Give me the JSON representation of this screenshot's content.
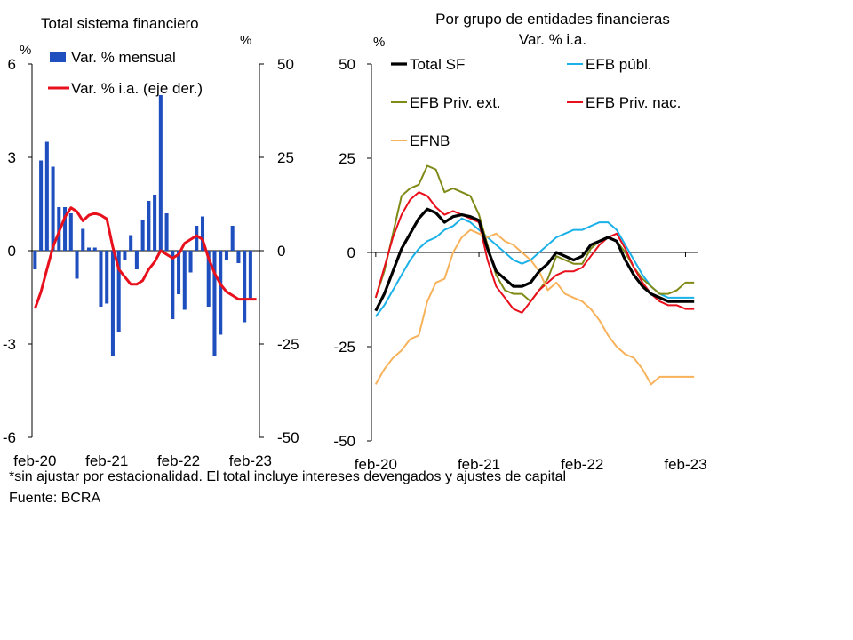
{
  "chart_data": [
    {
      "type": "bar+line",
      "title": "Total sistema financiero",
      "y_left_unit": "%",
      "y_right_unit": "%",
      "ylim_left": [
        -6,
        6
      ],
      "ylim_right": [
        -50,
        50
      ],
      "yticks_left": [
        "6",
        "3",
        "0",
        "-3",
        "-6"
      ],
      "yticks_right": [
        "50",
        "25",
        "0",
        "-25",
        "-50"
      ],
      "xticks": [
        "feb-20",
        "feb-21",
        "feb-22",
        "feb-23"
      ],
      "legend": [
        "Var. % mensual",
        "Var. % i.a. (eje der.)"
      ],
      "colors": {
        "bars": "#1f4fbf",
        "line": "#e8101c"
      },
      "x": [
        "feb-20",
        "mar-20",
        "abr-20",
        "may-20",
        "jun-20",
        "jul-20",
        "ago-20",
        "sep-20",
        "oct-20",
        "nov-20",
        "dic-20",
        "ene-21",
        "feb-21",
        "mar-21",
        "abr-21",
        "may-21",
        "jun-21",
        "jul-21",
        "ago-21",
        "sep-21",
        "oct-21",
        "nov-21",
        "dic-21",
        "ene-22",
        "feb-22",
        "mar-22",
        "abr-22",
        "may-22",
        "jun-22",
        "jul-22",
        "ago-22",
        "sep-22",
        "oct-22",
        "nov-22",
        "dic-22",
        "ene-23",
        "feb-23",
        "mar-23"
      ],
      "series": [
        {
          "name": "Var. % mensual",
          "kind": "bar",
          "values": [
            -0.6,
            2.9,
            3.5,
            2.7,
            1.4,
            1.4,
            1.2,
            -0.9,
            0.7,
            0.1,
            0.1,
            -1.8,
            -1.7,
            -3.4,
            -2.6,
            -0.3,
            0.5,
            -0.6,
            1.0,
            1.6,
            1.8,
            5.0,
            1.2,
            -2.2,
            -1.4,
            -1.9,
            -0.7,
            0.8,
            1.1,
            -1.8,
            -3.4,
            -2.7,
            -0.3,
            0.8,
            -0.4,
            -2.3,
            -1.6,
            0
          ]
        },
        {
          "name": "Var. % i.a. (eje der.)",
          "kind": "line",
          "axis": "right",
          "values": [
            -15.5,
            -11,
            -5,
            1,
            5,
            9,
            11.5,
            10.5,
            8,
            9.5,
            10,
            9.5,
            8.5,
            1,
            -5,
            -7,
            -9,
            -9,
            -8,
            -5,
            -3,
            0,
            -1,
            -2,
            -1,
            2,
            3,
            4,
            3,
            -2,
            -6,
            -9,
            -11,
            -12,
            -13,
            -13,
            -13,
            -13
          ]
        }
      ]
    },
    {
      "type": "line",
      "title": "Por grupo de entidades financieras",
      "subtitle": "Var. % i.a.",
      "y_unit": "%",
      "ylim": [
        -50,
        50
      ],
      "yticks": [
        "50",
        "25",
        "0",
        "-25",
        "-50"
      ],
      "xticks": [
        "feb-20",
        "feb-21",
        "feb-22",
        "feb-23"
      ],
      "x": [
        "feb-20",
        "mar-20",
        "abr-20",
        "may-20",
        "jun-20",
        "jul-20",
        "ago-20",
        "sep-20",
        "oct-20",
        "nov-20",
        "dic-20",
        "ene-21",
        "feb-21",
        "mar-21",
        "abr-21",
        "may-21",
        "jun-21",
        "jul-21",
        "ago-21",
        "sep-21",
        "oct-21",
        "nov-21",
        "dic-21",
        "ene-22",
        "feb-22",
        "mar-22",
        "abr-22",
        "may-22",
        "jun-22",
        "jul-22",
        "ago-22",
        "sep-22",
        "oct-22",
        "nov-22",
        "dic-22",
        "ene-23",
        "feb-23",
        "mar-23"
      ],
      "series": [
        {
          "name": "Total SF",
          "color": "#000000",
          "width": 3.2,
          "values": [
            -15.5,
            -11,
            -5,
            1,
            5,
            9,
            11.5,
            10.5,
            8,
            9.5,
            10,
            9.5,
            8.5,
            1,
            -5,
            -7,
            -9,
            -9,
            -8,
            -5,
            -3,
            0,
            -1,
            -2,
            -1,
            2,
            3,
            4,
            3,
            -2,
            -6,
            -9,
            -11,
            -12,
            -13,
            -13,
            -13,
            -13
          ]
        },
        {
          "name": "EFB públ.",
          "color": "#1ab0e8",
          "width": 2,
          "values": [
            -17,
            -14,
            -10,
            -6,
            -2,
            1,
            3,
            4,
            6,
            7,
            9,
            8,
            6,
            4,
            2,
            0,
            -2,
            -3,
            -2,
            0,
            2,
            4,
            5,
            6,
            6,
            7,
            8,
            8,
            6,
            2,
            -2,
            -6,
            -9,
            -11,
            -12,
            -12,
            -12,
            -12
          ]
        },
        {
          "name": "EFB Priv. ext.",
          "color": "#808a17",
          "width": 2,
          "values": [
            -12,
            -5,
            5,
            15,
            17,
            18,
            23,
            22,
            16,
            17,
            16,
            15,
            10,
            2,
            -6,
            -10,
            -11,
            -11,
            -13,
            -10,
            -7,
            -1,
            -2,
            -3,
            -3,
            1,
            3,
            4,
            3,
            0,
            -4,
            -7,
            -9,
            -11,
            -11,
            -10,
            -8,
            -8
          ]
        },
        {
          "name": "EFB Priv. nac.",
          "color": "#e8101c",
          "width": 2,
          "values": [
            -12,
            -4,
            4,
            10,
            14,
            16,
            15,
            12,
            10,
            11,
            10,
            9,
            8,
            -2,
            -9,
            -12,
            -15,
            -16,
            -13,
            -10,
            -8,
            -6,
            -5,
            -5,
            -4,
            -1,
            2,
            4,
            5,
            1,
            -4,
            -8,
            -11,
            -13,
            -14,
            -14,
            -15,
            -15
          ]
        },
        {
          "name": "EFNB",
          "color": "#f7b25b",
          "width": 2,
          "values": [
            -35,
            -31,
            -28,
            -26,
            -23,
            -22,
            -13,
            -8,
            -7,
            0,
            4,
            6,
            5,
            4,
            5,
            3,
            2,
            0,
            -2,
            -5,
            -10,
            -8,
            -11,
            -12,
            -13,
            -15,
            -18,
            -22,
            -25,
            -27,
            -28,
            -31,
            -35,
            -33,
            -33,
            -33,
            -33,
            -33
          ]
        }
      ]
    }
  ],
  "footnotes": {
    "note": "*sin ajustar por estacionalidad. El total incluye intereses devengados y ajustes de capital",
    "source": "Fuente: BCRA"
  }
}
